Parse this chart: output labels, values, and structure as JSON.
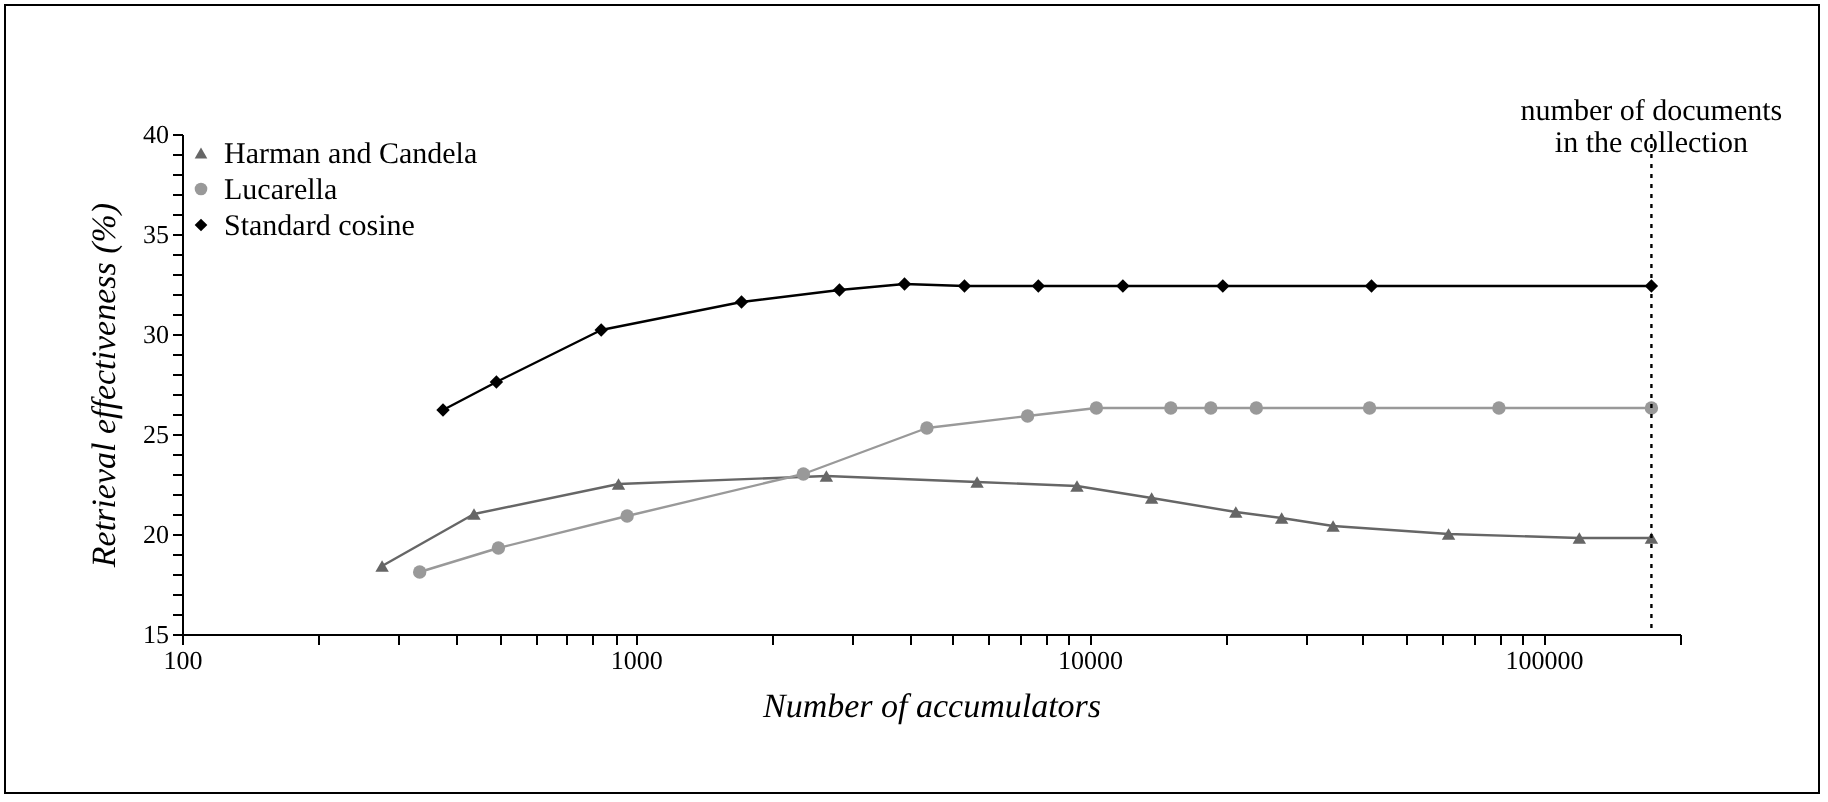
{
  "chart_data": {
    "type": "line",
    "xlabel": "Number of accumulators",
    "ylabel": "Retrieval effectiveness (%)",
    "log": "x",
    "legend": "top left",
    "xlim": [
      100,
      200000
    ],
    "ylim": [
      15,
      40
    ],
    "xticks": [
      100,
      {
        "value": 200,
        "label": null
      },
      {
        "value": 300,
        "label": null
      },
      {
        "value": 400,
        "label": null
      },
      {
        "value": 500,
        "label": null
      },
      {
        "value": 600,
        "label": null
      },
      {
        "value": 700,
        "label": null
      },
      {
        "value": 800,
        "label": null
      },
      {
        "value": 900,
        "label": null
      },
      1000,
      {
        "value": 2000,
        "label": null
      },
      {
        "value": 3000,
        "label": null
      },
      {
        "value": 4000,
        "label": null
      },
      {
        "value": 5000,
        "label": null
      },
      {
        "value": 6000,
        "label": null
      },
      {
        "value": 7000,
        "label": null
      },
      {
        "value": 8000,
        "label": null
      },
      {
        "value": 9000,
        "label": null
      },
      10000,
      {
        "value": 20000,
        "label": null
      },
      {
        "value": 30000,
        "label": null
      },
      {
        "value": 40000,
        "label": null
      },
      {
        "value": 50000,
        "label": null
      },
      {
        "value": 60000,
        "label": null
      },
      {
        "value": 70000,
        "label": null
      },
      {
        "value": 80000,
        "label": null
      },
      {
        "value": 90000,
        "label": null
      },
      100000,
      {
        "value": 200000,
        "label": null
      }
    ],
    "yticks": [
      15,
      {
        "value": 16,
        "label": null
      },
      {
        "value": 17,
        "label": null
      },
      {
        "value": 18,
        "label": null
      },
      {
        "value": 19,
        "label": null
      },
      20,
      {
        "value": 21,
        "label": null
      },
      {
        "value": 22,
        "label": null
      },
      {
        "value": 23,
        "label": null
      },
      {
        "value": 24,
        "label": null
      },
      25,
      {
        "value": 26,
        "label": null
      },
      {
        "value": 27,
        "label": null
      },
      {
        "value": 28,
        "label": null
      },
      {
        "value": 29,
        "label": null
      },
      30,
      {
        "value": 31,
        "label": null
      },
      {
        "value": 32,
        "label": null
      },
      {
        "value": 33,
        "label": null
      },
      {
        "value": 34,
        "label": null
      },
      35,
      {
        "value": 36,
        "label": null
      },
      {
        "value": 37,
        "label": null
      },
      {
        "value": 38,
        "label": null
      },
      {
        "value": 39,
        "label": null
      },
      40
    ],
    "series": [
      {
        "name": "Harman and Candela",
        "color": "#666666",
        "marker": "triangle",
        "x": [
          276,
          440,
          916,
          2630,
          5650,
          9380,
          13700,
          21000,
          26500,
          34400,
          61800,
          120000,
          173000
        ],
        "values": [
          18.4,
          21.0,
          22.5,
          22.9,
          22.6,
          22.4,
          21.8,
          21.1,
          20.8,
          20.4,
          20.0,
          19.8,
          19.8
        ]
      },
      {
        "name": "Lucarella",
        "color": "#999999",
        "marker": "circle",
        "x": [
          334,
          498,
          957,
          2340,
          4380,
          7300,
          10350,
          15100,
          18500,
          23300,
          41400,
          79800,
          173000
        ],
        "values": [
          18.1,
          19.3,
          20.9,
          23.0,
          25.3,
          25.9,
          26.3,
          26.3,
          26.3,
          26.3,
          26.3,
          26.3,
          26.3
        ]
      },
      {
        "name": "Standard cosine",
        "color": "#000000",
        "marker": "diamond",
        "x": [
          376,
          493,
          839,
          1710,
          2810,
          3910,
          5300,
          7710,
          11840,
          19660,
          41800,
          173000
        ],
        "values": [
          26.2,
          27.6,
          30.2,
          31.6,
          32.2,
          32.5,
          32.4,
          32.4,
          32.4,
          32.4,
          32.4,
          32.4
        ]
      }
    ],
    "ref_lines": [
      {
        "axis": "x",
        "value": 173000,
        "label": "number of documents\nin the collection",
        "color": "#000000",
        "line_style": "dotted"
      }
    ]
  }
}
